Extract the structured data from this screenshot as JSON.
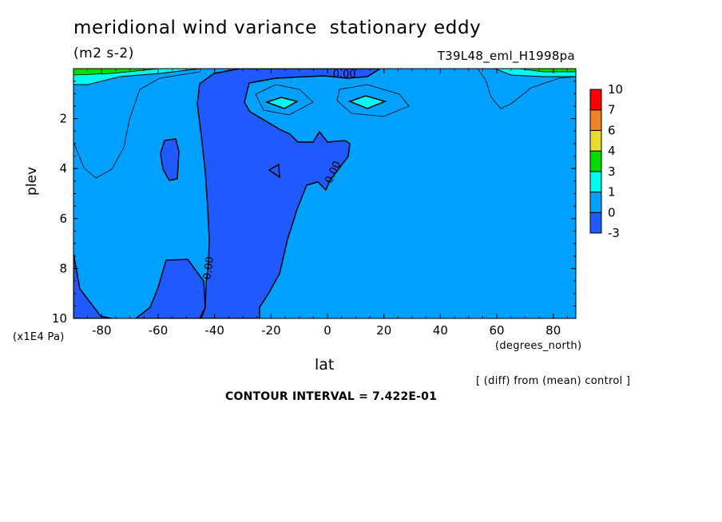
{
  "chart_data": {
    "type": "heatmap",
    "title": "meridional wind variance  stationary eddy",
    "units": "(m2 s-2)",
    "run_label": "T39L48_eml_H1998pa",
    "xlabel": "lat",
    "x_units": "(degrees_north)",
    "ylabel": "plev",
    "y_units": "(x1E4 Pa)",
    "xlim": [
      -90,
      88
    ],
    "ylim": [
      10,
      0
    ],
    "x_ticks": [
      -80,
      -60,
      -40,
      -20,
      0,
      20,
      40,
      60,
      80
    ],
    "x_tick_labels": [
      "-80",
      "-60",
      "-40",
      "-20",
      "0",
      "20",
      "40",
      "60",
      "80"
    ],
    "y_ticks": [
      2,
      4,
      6,
      8,
      10
    ],
    "y_tick_labels": [
      "2",
      "4",
      "6",
      "8",
      "10"
    ],
    "contour_interval_text": "CONTOUR INTERVAL = 7.422E-01",
    "note": "[ (diff) from (mean) control ]",
    "contour_labels": [
      "0.00",
      "0.00",
      "0.00"
    ],
    "colorbar": {
      "levels": [
        "-3",
        "0",
        "1",
        "3",
        "4",
        "6",
        "7",
        "10"
      ],
      "colors": [
        "#1e5aff",
        "#00a0ff",
        "#00faf0",
        "#00dc00",
        "#e6dc32",
        "#f08228",
        "#fa0000"
      ]
    },
    "regions": [
      {
        "level": "0 to 1",
        "color": "#00a0ff",
        "description": "background field"
      },
      {
        "level": "-3 to 0",
        "color": "#1e5aff",
        "description": "negative band from the surface near -40 to upper levels near 0"
      },
      {
        "level": "-3 to 0",
        "color": "#1e5aff",
        "description": "negative cell near -55 at 3-4.5"
      },
      {
        "level": "-3 to 0",
        "color": "#1e5aff",
        "description": "negative region near the surface poleward of -40"
      },
      {
        "level": "1 to 3",
        "color": "#00faf0",
        "description": "positive cells near -15 and 15 at about 1.3"
      }
    ]
  }
}
